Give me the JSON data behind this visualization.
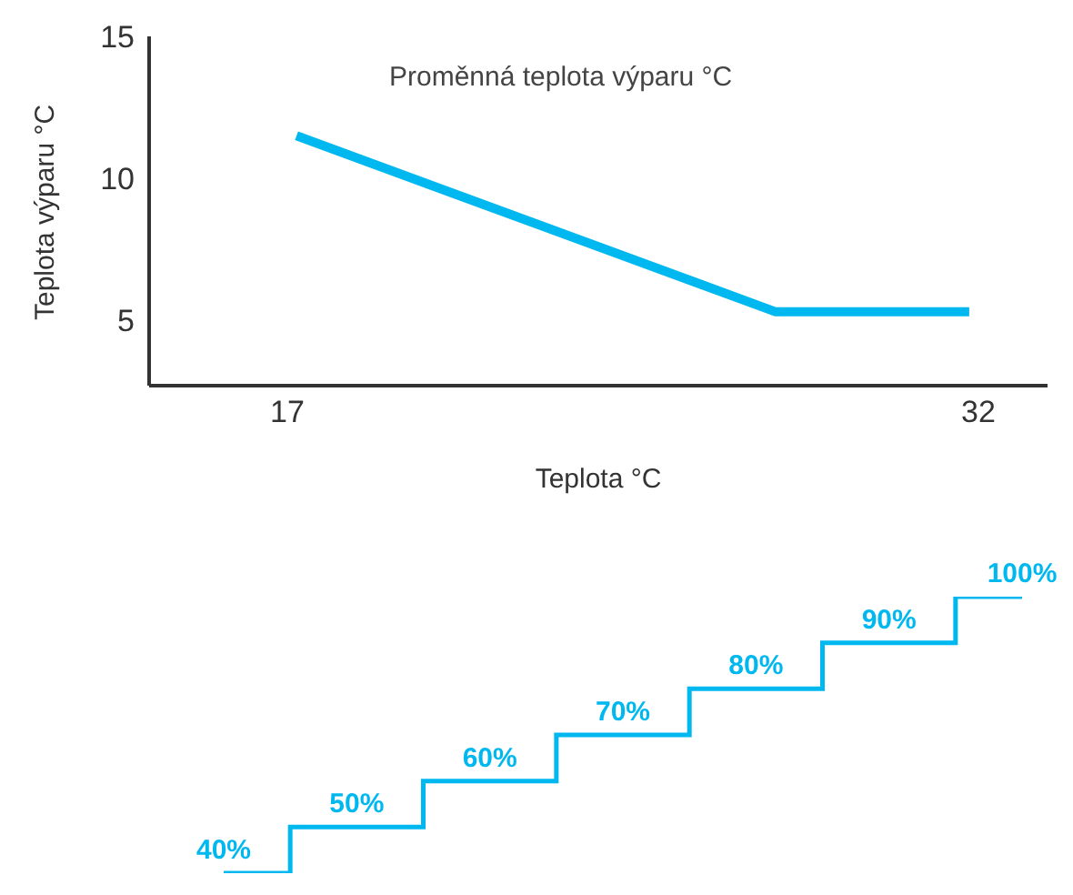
{
  "chart_data": [
    {
      "type": "line",
      "title": "Proměnná teplota výparu °C",
      "xlabel": "Teplota °C",
      "ylabel": "Teplota výparu °C",
      "xlim": [
        14,
        33.5
      ],
      "ylim": [
        2.7,
        15
      ],
      "xticks": [
        17,
        32
      ],
      "yticks": [
        5,
        10,
        15
      ],
      "grid": false,
      "legend": false,
      "series": [
        {
          "color": "#00b8f0",
          "x": [
            17.2,
            27.6,
            31.8
          ],
          "values": [
            11.5,
            5.3,
            5.3
          ]
        }
      ]
    },
    {
      "type": "step",
      "categories": [
        null,
        null,
        null,
        null,
        null,
        null,
        null
      ],
      "values": [
        40,
        50,
        60,
        70,
        80,
        90,
        100
      ],
      "value_labels": [
        "40%",
        "50%",
        "60%",
        "70%",
        "80%",
        "90%",
        "100%"
      ],
      "color": "#00b8f0",
      "tick_labels": false
    }
  ]
}
